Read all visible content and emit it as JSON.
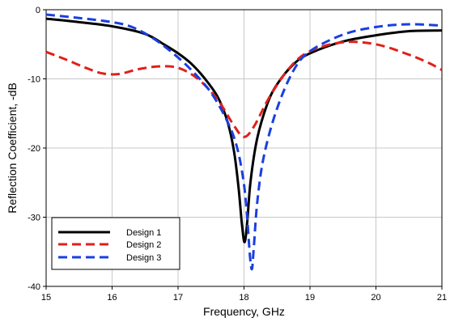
{
  "chart_data": {
    "type": "line",
    "title": "",
    "xlabel": "Frequency, GHz",
    "ylabel": "Reflection Coefficient, -dB",
    "xlim": [
      15,
      21
    ],
    "ylim": [
      0,
      -40
    ],
    "xticks": [
      "15",
      "16",
      "17",
      "18",
      "19",
      "20",
      "21"
    ],
    "yticks": [
      "0",
      "-10",
      "-20",
      "-30",
      "-40"
    ],
    "grid": true,
    "legend_position": "bottom-left",
    "series": [
      {
        "name": "Design 1",
        "color": "#000000",
        "dash": "solid",
        "points": [
          [
            15,
            -1.3
          ],
          [
            15.5,
            -1.8
          ],
          [
            16,
            -2.4
          ],
          [
            16.5,
            -3.5
          ],
          [
            16.8,
            -5.1
          ],
          [
            17,
            -6.3
          ],
          [
            17.2,
            -7.8
          ],
          [
            17.4,
            -9.9
          ],
          [
            17.6,
            -12.6
          ],
          [
            17.75,
            -16.2
          ],
          [
            17.85,
            -20.6
          ],
          [
            17.92,
            -26
          ],
          [
            17.97,
            -31.2
          ],
          [
            18.01,
            -33.6
          ],
          [
            18.05,
            -30.5
          ],
          [
            18.1,
            -24.7
          ],
          [
            18.2,
            -18.6
          ],
          [
            18.35,
            -13.7
          ],
          [
            18.5,
            -10.8
          ],
          [
            18.75,
            -7.9
          ],
          [
            19,
            -6.3
          ],
          [
            19.5,
            -4.6
          ],
          [
            20,
            -3.7
          ],
          [
            20.5,
            -3.1
          ],
          [
            21,
            -3
          ]
        ]
      },
      {
        "name": "Design 2",
        "color": "#e0201b",
        "dash": "dashed",
        "points": [
          [
            15,
            -6.1
          ],
          [
            15.3,
            -7.2
          ],
          [
            15.6,
            -8.4
          ],
          [
            15.85,
            -9.2
          ],
          [
            16.1,
            -9.3
          ],
          [
            16.4,
            -8.6
          ],
          [
            16.7,
            -8.2
          ],
          [
            17,
            -8.4
          ],
          [
            17.3,
            -10
          ],
          [
            17.6,
            -13
          ],
          [
            17.85,
            -16.8
          ],
          [
            18,
            -18.4
          ],
          [
            18.15,
            -16.9
          ],
          [
            18.4,
            -12.4
          ],
          [
            18.7,
            -8.3
          ],
          [
            19,
            -6
          ],
          [
            19.5,
            -4.7
          ],
          [
            20,
            -5
          ],
          [
            20.5,
            -6.5
          ],
          [
            20.8,
            -7.7
          ],
          [
            21,
            -8.7
          ]
        ]
      },
      {
        "name": "Design 3",
        "color": "#1a3fe0",
        "dash": "dashed",
        "points": [
          [
            15,
            -0.7
          ],
          [
            15.5,
            -1.2
          ],
          [
            16,
            -1.8
          ],
          [
            16.3,
            -2.5
          ],
          [
            16.6,
            -4
          ],
          [
            16.9,
            -6.1
          ],
          [
            17.2,
            -8.7
          ],
          [
            17.5,
            -12
          ],
          [
            17.75,
            -16.2
          ],
          [
            17.9,
            -20.1
          ],
          [
            18,
            -25.3
          ],
          [
            18.05,
            -30.4
          ],
          [
            18.09,
            -35.6
          ],
          [
            18.12,
            -37.5
          ],
          [
            18.15,
            -34.2
          ],
          [
            18.2,
            -27.9
          ],
          [
            18.3,
            -21.2
          ],
          [
            18.5,
            -14.3
          ],
          [
            18.75,
            -8.8
          ],
          [
            19,
            -6
          ],
          [
            19.5,
            -3.6
          ],
          [
            20,
            -2.5
          ],
          [
            20.5,
            -2.1
          ],
          [
            21,
            -2.3
          ]
        ]
      }
    ]
  }
}
